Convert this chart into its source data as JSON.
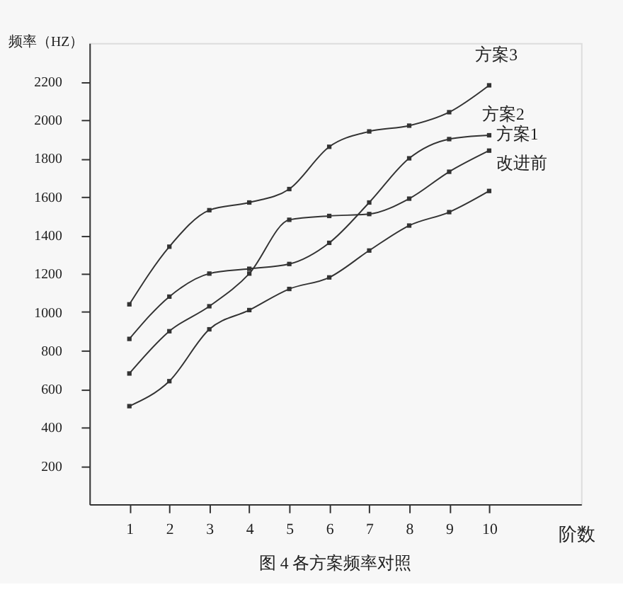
{
  "chart_data": {
    "type": "line",
    "title": "图 4 各方案频率对照",
    "xlabel": "阶数",
    "ylabel": "频率（HZ）",
    "x": [
      1,
      2,
      3,
      4,
      5,
      6,
      7,
      8,
      9,
      10
    ],
    "series": [
      {
        "name": "方案3",
        "color": "#333333",
        "values": [
          1040,
          1340,
          1530,
          1570,
          1640,
          1860,
          1940,
          1970,
          2040,
          2180
        ]
      },
      {
        "name": "方案2",
        "color": "#333333",
        "values": [
          860,
          1080,
          1200,
          1225,
          1250,
          1360,
          1570,
          1800,
          1900,
          1920
        ]
      },
      {
        "name": "方案1",
        "color": "#333333",
        "values": [
          680,
          900,
          1030,
          1200,
          1480,
          1500,
          1510,
          1590,
          1730,
          1840
        ]
      },
      {
        "name": "改进前",
        "color": "#333333",
        "values": [
          510,
          640,
          910,
          1010,
          1120,
          1180,
          1320,
          1450,
          1520,
          1630
        ]
      }
    ],
    "xlim": [
      0,
      12.3
    ],
    "ylim": [
      0,
      2400
    ],
    "xticks": [
      1,
      2,
      3,
      4,
      5,
      6,
      7,
      8,
      9,
      10
    ],
    "yticks": [
      200,
      400,
      600,
      800,
      1000,
      1200,
      1400,
      1600,
      1800,
      2000,
      2200
    ],
    "grid": false,
    "legend": false,
    "marker": "square",
    "line_style": "solid"
  }
}
